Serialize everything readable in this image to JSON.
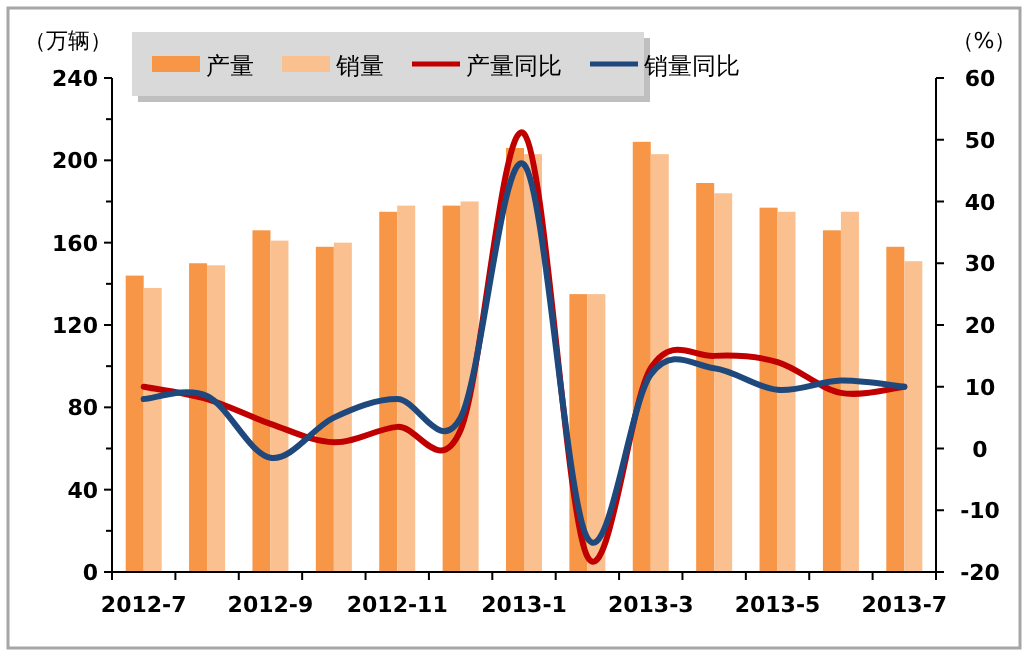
{
  "chart_data": {
    "type": "bar",
    "ylabel": "（万辆）",
    "y2label": "（%）",
    "categories": [
      "2012-7",
      null,
      "2012-9",
      null,
      "2012-11",
      null,
      "2013-1",
      null,
      "2013-3",
      null,
      "2013-5",
      null,
      "2013-7"
    ],
    "series": [
      {
        "name": "产量",
        "color": "#f79646",
        "values": [
          144,
          150,
          166,
          158,
          175,
          178,
          206,
          135,
          209,
          189,
          177,
          166,
          158
        ]
      },
      {
        "name": "销量",
        "color": "#fac090",
        "values": [
          138,
          149,
          161,
          160,
          178,
          180,
          203,
          135,
          203,
          184,
          175,
          175,
          151
        ]
      },
      {
        "name": "产量同比",
        "type": "line",
        "axis": "y2",
        "color": "#c00000",
        "values": [
          10,
          8,
          4,
          1,
          3.5,
          3,
          51,
          -17.5,
          13,
          15,
          14,
          9,
          10
        ]
      },
      {
        "name": "销量同比",
        "type": "line",
        "axis": "y2",
        "color": "#1f497d",
        "values": [
          8,
          8.5,
          -1.5,
          5,
          8,
          5,
          46,
          -14.5,
          12,
          13,
          9.5,
          11,
          10
        ]
      }
    ],
    "ylim": [
      0,
      240
    ],
    "yticks": [
      0,
      40,
      80,
      120,
      160,
      200,
      240
    ],
    "y2lim": [
      -20,
      60
    ],
    "y2ticks": [
      -20,
      -10,
      0,
      10,
      20,
      30,
      40,
      50,
      60
    ],
    "legend": "top",
    "grid": false
  }
}
